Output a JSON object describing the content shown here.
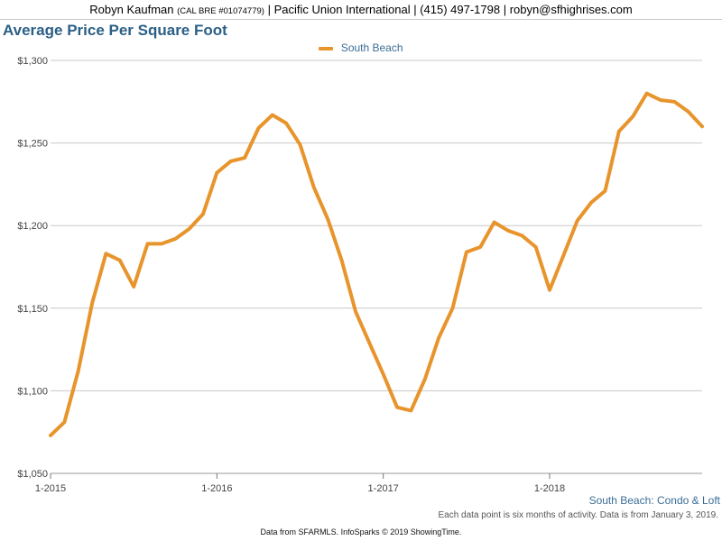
{
  "header": {
    "name": "Robyn Kaufman",
    "license": "(CAL BRE #01074779)",
    "details": "| Pacific Union International | (415) 497-1798 | robyn@sfhighrises.com"
  },
  "subtitle": "South Beach: Condo & Loft",
  "note": "Each data point is six months of activity. Data is from January 3, 2019.",
  "source": "Data from SFARMLS. InfoSparks © 2019 ShowingTime.",
  "colors": {
    "line": "#e8942c",
    "title": "#2b5f86",
    "grid": "#c8c8c8"
  },
  "chart_data": {
    "type": "line",
    "title": "Average Price Per Square Foot",
    "xlabel": "",
    "ylabel": "",
    "legend_position": "top-center",
    "grid": true,
    "ylim": [
      1050,
      1300
    ],
    "yticks": [
      1050,
      1100,
      1150,
      1200,
      1250,
      1300
    ],
    "ytick_labels": [
      "$1,050",
      "$1,100",
      "$1,150",
      "$1,200",
      "$1,250",
      "$1,300"
    ],
    "xticks": [
      {
        "label": "1-2015",
        "index": 0
      },
      {
        "label": "1-2016",
        "index": 12
      },
      {
        "label": "1-2017",
        "index": 24
      },
      {
        "label": "1-2018",
        "index": 36
      }
    ],
    "x": [
      "2015-01",
      "2015-02",
      "2015-03",
      "2015-04",
      "2015-05",
      "2015-06",
      "2015-07",
      "2015-08",
      "2015-09",
      "2015-10",
      "2015-11",
      "2015-12",
      "2016-01",
      "2016-02",
      "2016-03",
      "2016-04",
      "2016-05",
      "2016-06",
      "2016-07",
      "2016-08",
      "2016-09",
      "2016-10",
      "2016-11",
      "2016-12",
      "2017-01",
      "2017-02",
      "2017-03",
      "2017-04",
      "2017-05",
      "2017-06",
      "2017-07",
      "2017-08",
      "2017-09",
      "2017-10",
      "2017-11",
      "2017-12",
      "2018-01",
      "2018-02",
      "2018-03",
      "2018-04",
      "2018-05",
      "2018-06",
      "2018-07",
      "2018-08",
      "2018-09",
      "2018-10",
      "2018-11",
      "2018-12"
    ],
    "series": [
      {
        "name": "South Beach",
        "values": [
          1073,
          1081,
          1112,
          1153,
          1183,
          1179,
          1163,
          1189,
          1189,
          1192,
          1198,
          1207,
          1232,
          1239,
          1241,
          1259,
          1267,
          1262,
          1249,
          1223,
          1204,
          1179,
          1148,
          1129,
          1110,
          1090,
          1088,
          1107,
          1132,
          1150,
          1184,
          1187,
          1202,
          1197,
          1194,
          1187,
          1161,
          1182,
          1203,
          1214,
          1221,
          1257,
          1266,
          1280,
          1276,
          1275,
          1269,
          1260
        ]
      }
    ]
  }
}
